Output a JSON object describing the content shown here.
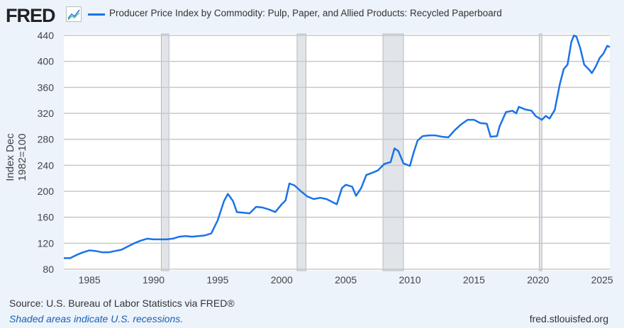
{
  "header": {
    "logo": "FRED",
    "title": "Producer Price Index by Commodity: Pulp, Paper, and Allied Products: Recycled Paperboard"
  },
  "footer": {
    "source": "Source: U.S. Bureau of Labor Statistics via FRED®",
    "shaded": "Shaded areas indicate U.S. recessions.",
    "url": "fred.stlouisfed.org"
  },
  "colors": {
    "line": "#1a73e8",
    "recession": "#e1e5ea"
  },
  "chart_data": {
    "type": "line",
    "title": "Producer Price Index by Commodity: Pulp, Paper, and Allied Products: Recycled Paperboard",
    "ylabel": "Index Dec 1982=100",
    "xlabel": "",
    "xlim": [
      1983,
      2025.6
    ],
    "ylim": [
      80,
      440
    ],
    "xticks": [
      1985,
      1990,
      1995,
      2000,
      2005,
      2010,
      2015,
      2020,
      2025
    ],
    "yticks": [
      80,
      120,
      160,
      200,
      240,
      280,
      320,
      360,
      400,
      440
    ],
    "grid": true,
    "recessions": [
      [
        1990.6,
        1991.2
      ],
      [
        2001.2,
        2001.9
      ],
      [
        2007.9,
        2009.5
      ],
      [
        2020.1,
        2020.3
      ]
    ],
    "x": [
      1983,
      1983.5,
      1984,
      1984.5,
      1985,
      1985.5,
      1986,
      1986.5,
      1987,
      1987.5,
      1988,
      1988.5,
      1989,
      1989.5,
      1990,
      1990.5,
      1991,
      1991.5,
      1992,
      1992.5,
      1993,
      1993.5,
      1994,
      1994.5,
      1995,
      1995.5,
      1995.8,
      1996.2,
      1996.5,
      1997,
      1997.5,
      1998,
      1998.5,
      1999,
      1999.5,
      2000,
      2000.3,
      2000.6,
      2001,
      2001.5,
      2002,
      2002.5,
      2003,
      2003.5,
      2004,
      2004.3,
      2004.7,
      2005,
      2005.5,
      2005.8,
      2006.2,
      2006.6,
      2007,
      2007.5,
      2008,
      2008.5,
      2008.8,
      2009.1,
      2009.5,
      2010,
      2010.3,
      2010.6,
      2011,
      2011.5,
      2012,
      2012.5,
      2013,
      2013.5,
      2014,
      2014.5,
      2015,
      2015.5,
      2016,
      2016.3,
      2016.8,
      2017,
      2017.5,
      2018,
      2018.3,
      2018.5,
      2019,
      2019.5,
      2019.8,
      2020.3,
      2020.6,
      2020.9,
      2021.3,
      2021.7,
      2022,
      2022.3,
      2022.6,
      2022.8,
      2023,
      2023.3,
      2023.6,
      2024,
      2024.2,
      2024.5,
      2024.8,
      2025.1,
      2025.4,
      2025.6
    ],
    "y": [
      97,
      97,
      102,
      106,
      109,
      108,
      106,
      106,
      108,
      110,
      115,
      120,
      124,
      127,
      126,
      126,
      126,
      127,
      130,
      131,
      130,
      131,
      132,
      135,
      155,
      185,
      196,
      185,
      168,
      167,
      166,
      176,
      175,
      172,
      168,
      180,
      186,
      212,
      209,
      200,
      192,
      188,
      190,
      188,
      183,
      180,
      205,
      210,
      207,
      193,
      205,
      225,
      228,
      232,
      242,
      245,
      266,
      262,
      243,
      239,
      260,
      278,
      285,
      286,
      286,
      284,
      283,
      294,
      303,
      310,
      310,
      305,
      304,
      284,
      285,
      300,
      322,
      324,
      320,
      330,
      326,
      324,
      316,
      310,
      316,
      312,
      325,
      365,
      388,
      395,
      430,
      440,
      438,
      420,
      395,
      387,
      382,
      392,
      405,
      412,
      424,
      422
    ]
  }
}
